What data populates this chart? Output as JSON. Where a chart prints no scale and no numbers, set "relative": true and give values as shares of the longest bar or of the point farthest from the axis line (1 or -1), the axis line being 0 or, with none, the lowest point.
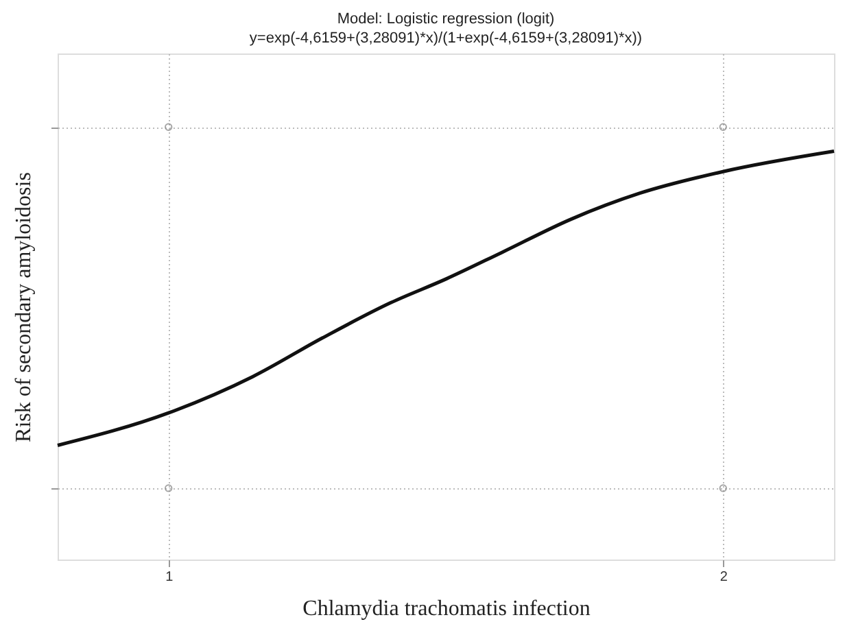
{
  "chart_data": {
    "type": "line",
    "title": "Model: Logistic regression (logit)",
    "subtitle": "y=exp(-4,6159+(3,28091)*x)/(1+exp(-4,6159+(3,28091)*x))",
    "xlabel": "Chlamydia trachomatis infection",
    "ylabel": "Risk of secondary amyloidosis",
    "relative": true,
    "xlim": [
      0.8,
      2.2
    ],
    "xticks": [
      1,
      2
    ],
    "grid": true,
    "series": [
      {
        "color": "#111111",
        "line_style": "solid",
        "marker": "none",
        "x": [
          0.8,
          1.0,
          1.152,
          1.277,
          1.401,
          1.501,
          1.601,
          1.726,
          1.85,
          2.0,
          2.2
        ],
        "values": [
          0.264,
          0.339,
          0.423,
          0.512,
          0.594,
          0.649,
          0.71,
          0.787,
          0.847,
          0.897,
          0.944
        ]
      },
      {
        "type": "scatter",
        "color": "#808080",
        "marker": "circle",
        "x": [
          1,
          1,
          2,
          2
        ],
        "values": [
          1.0,
          0.165,
          1.0,
          0.165
        ]
      }
    ]
  }
}
